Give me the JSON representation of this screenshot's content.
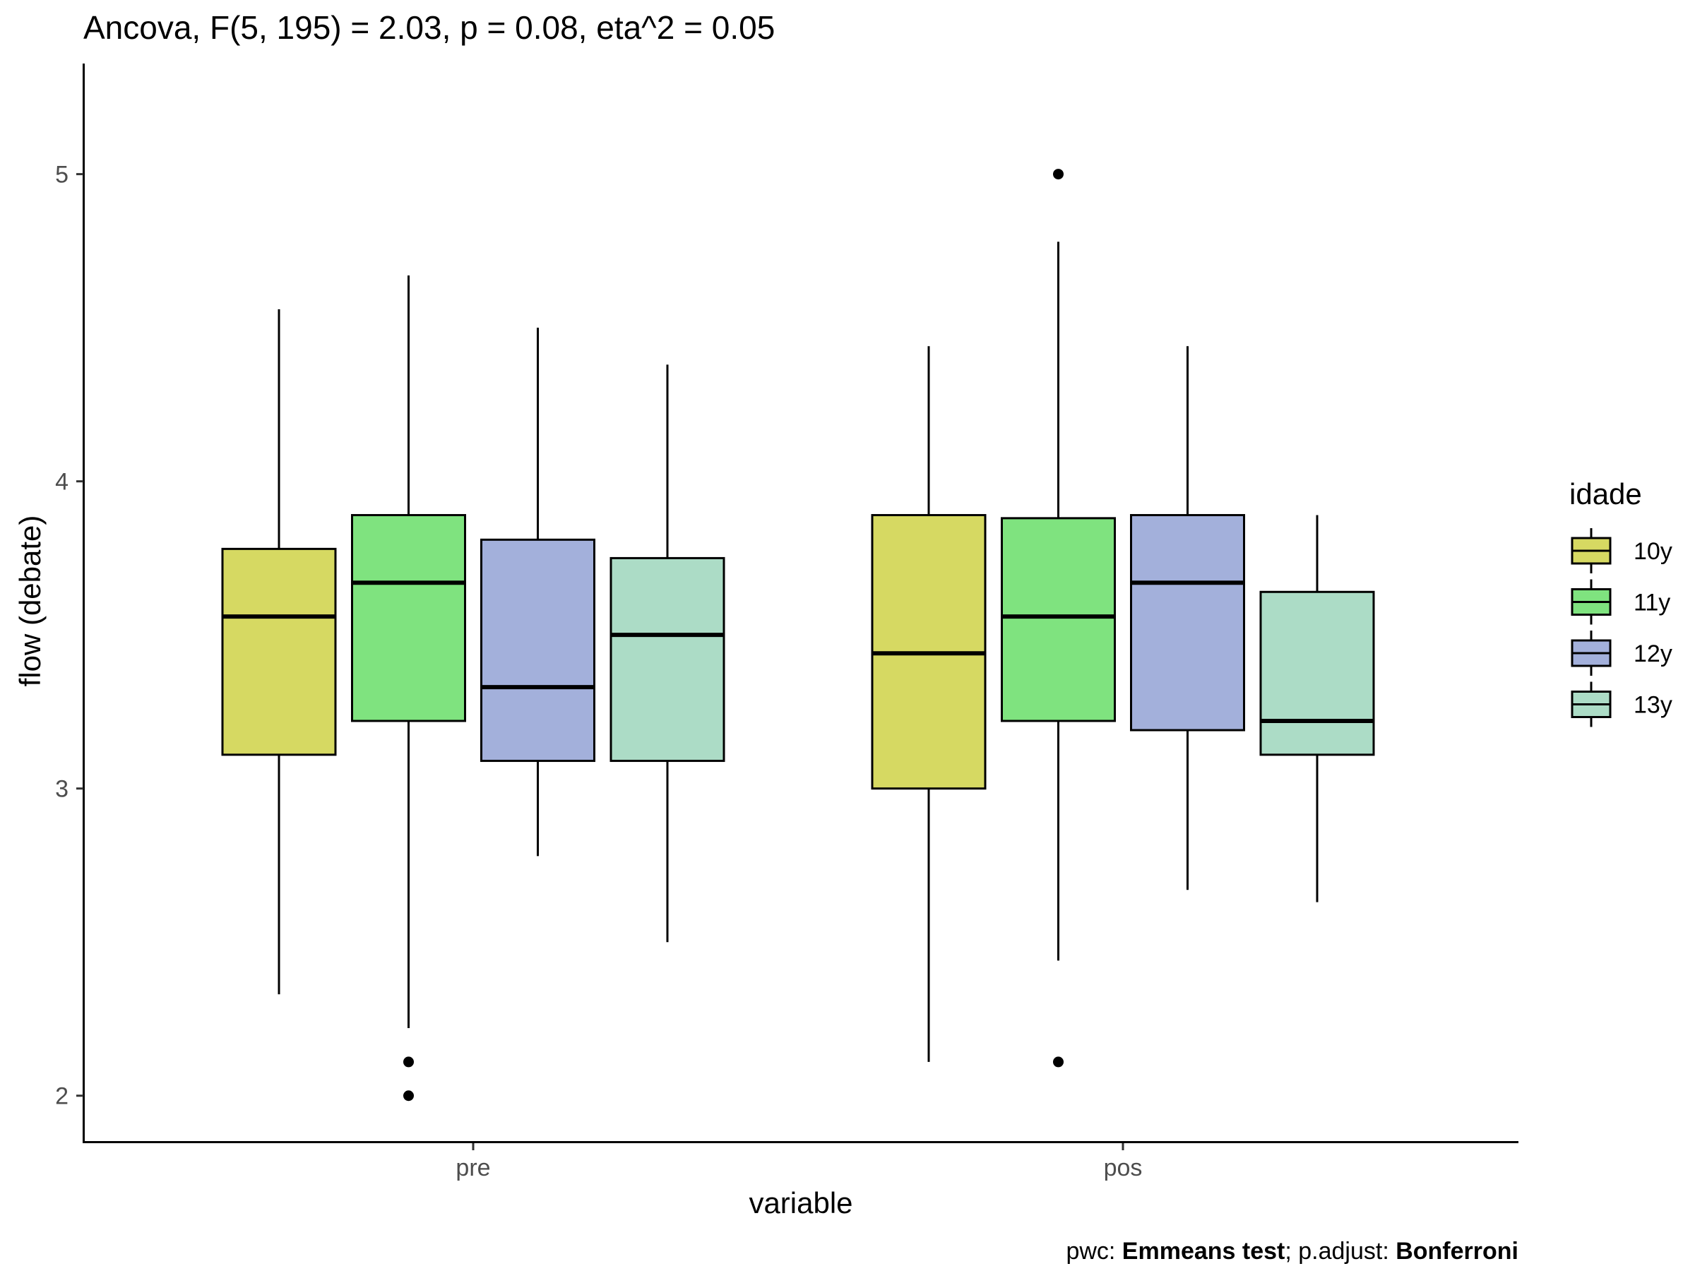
{
  "chart_data": {
    "type": "boxplot",
    "title": "Ancova, F(5, 195) = 2.03, p = 0.08, eta^2 = 0.05",
    "xlabel": "variable",
    "ylabel": "flow (debate)",
    "categories": [
      "pre",
      "pos"
    ],
    "ylim": [
      1.85,
      5.36
    ],
    "y_ticks": [
      2,
      3,
      4,
      5
    ],
    "y_tick_labels": [
      "2",
      "3",
      "4",
      "5"
    ],
    "grid": false,
    "legend": {
      "title": "idade",
      "position": "right",
      "entries": [
        "10y",
        "11y",
        "12y",
        "13y"
      ]
    },
    "colors": {
      "10y": "#d6d962",
      "11y": "#7fe37f",
      "12y": "#a3b0db",
      "13y": "#acdcc6"
    },
    "series": [
      {
        "name": "10y",
        "boxes": [
          {
            "category": "pre",
            "whisker_low": 2.33,
            "q1": 3.11,
            "median": 3.56,
            "q3": 3.78,
            "whisker_high": 4.56,
            "outliers": []
          },
          {
            "category": "pos",
            "whisker_low": 2.11,
            "q1": 3.0,
            "median": 3.44,
            "q3": 3.89,
            "whisker_high": 4.44,
            "outliers": []
          }
        ]
      },
      {
        "name": "11y",
        "boxes": [
          {
            "category": "pre",
            "whisker_low": 2.22,
            "q1": 3.22,
            "median": 3.67,
            "q3": 3.89,
            "whisker_high": 4.67,
            "outliers": [
              2.11,
              2.0
            ]
          },
          {
            "category": "pos",
            "whisker_low": 2.44,
            "q1": 3.22,
            "median": 3.56,
            "q3": 3.88,
            "whisker_high": 4.78,
            "outliers": [
              5.0,
              2.11
            ]
          }
        ]
      },
      {
        "name": "12y",
        "boxes": [
          {
            "category": "pre",
            "whisker_low": 2.78,
            "q1": 3.09,
            "median": 3.33,
            "q3": 3.81,
            "whisker_high": 4.5,
            "outliers": []
          },
          {
            "category": "pos",
            "whisker_low": 2.67,
            "q1": 3.19,
            "median": 3.67,
            "q3": 3.89,
            "whisker_high": 4.44,
            "outliers": []
          }
        ]
      },
      {
        "name": "13y",
        "boxes": [
          {
            "category": "pre",
            "whisker_low": 2.5,
            "q1": 3.09,
            "median": 3.5,
            "q3": 3.75,
            "whisker_high": 4.38,
            "outliers": []
          },
          {
            "category": "pos",
            "whisker_low": 2.63,
            "q1": 3.11,
            "median": 3.22,
            "q3": 3.64,
            "whisker_high": 3.89,
            "outliers": []
          }
        ]
      }
    ],
    "caption": {
      "prefix": "pwc: ",
      "method": "Emmeans test",
      "middle": "; p.adjust: ",
      "adjust": "Bonferroni"
    }
  }
}
